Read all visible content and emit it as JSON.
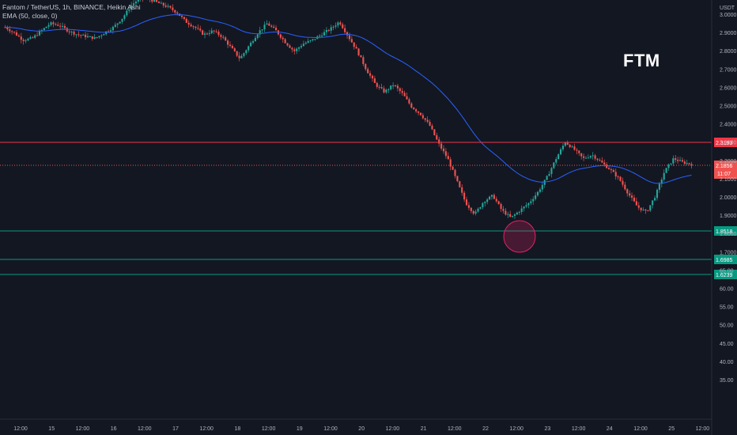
{
  "legend": {
    "line1": "Fantom / TetherUS, 1h, BINANCE, Heikin Ashi",
    "line2": "EMA (50, close, 0)"
  },
  "symbol": "FTM",
  "currency": "USDT",
  "colors": {
    "background": "#131722",
    "up": "#26a69a",
    "down": "#ef5350",
    "ema": "#2962ff",
    "resistance": "#f23645",
    "support": "#089981",
    "axis_text": "#b2b5be",
    "highlight": "#e91e63"
  },
  "chart_data": {
    "type": "candlestick",
    "xlabel": "",
    "ylabel": "",
    "price_axis_ticks": [
      "3.0000",
      "2.9000",
      "2.8000",
      "2.7000",
      "2.6000",
      "2.5000",
      "2.4000",
      "2.3000",
      "2.2000",
      "2.1000",
      "2.0000",
      "1.9000",
      "1.8000",
      "1.7000",
      "65.00",
      "60.00",
      "55.00",
      "50.00",
      "45.00",
      "40.00",
      "35.00"
    ],
    "time_axis_ticks": [
      "12:00",
      "15",
      "12:00",
      "16",
      "12:00",
      "17",
      "12:00",
      "18",
      "12:00",
      "19",
      "12:00",
      "20",
      "12:00",
      "21",
      "12:00",
      "22",
      "12:00",
      "23",
      "12:00",
      "24",
      "12:00",
      "25",
      "12:00"
    ],
    "horizontal_levels": [
      {
        "value": 2.3193,
        "label": "2.3193",
        "kind": "resistance"
      },
      {
        "value": 1.8518,
        "label": "1.8518",
        "kind": "support"
      },
      {
        "value": 1.6985,
        "label": "1.6985",
        "kind": "support"
      },
      {
        "value": 1.6239,
        "label": "1.6239",
        "kind": "support"
      }
    ],
    "last_price": {
      "value": 2.1856,
      "label": "2.1856",
      "countdown": "11:07"
    },
    "close_series": [
      2.93,
      2.9,
      2.86,
      2.87,
      2.91,
      2.95,
      2.94,
      2.91,
      2.89,
      2.88,
      2.87,
      2.9,
      2.93,
      2.98,
      3.05,
      3.09,
      3.08,
      3.06,
      3.04,
      3.01,
      2.96,
      2.93,
      2.89,
      2.91,
      2.88,
      2.82,
      2.76,
      2.83,
      2.9,
      2.95,
      2.91,
      2.85,
      2.8,
      2.84,
      2.86,
      2.89,
      2.92,
      2.96,
      2.88,
      2.8,
      2.7,
      2.62,
      2.58,
      2.62,
      2.57,
      2.5,
      2.46,
      2.4,
      2.3,
      2.22,
      2.1,
      1.98,
      1.92,
      1.99,
      2.02,
      1.94,
      1.9,
      1.94,
      1.98,
      2.04,
      2.12,
      2.22,
      2.31,
      2.27,
      2.22,
      2.24,
      2.2,
      2.16,
      2.11,
      2.03,
      1.96,
      1.93,
      2.02,
      2.15,
      2.22,
      2.2,
      2.19
    ]
  }
}
